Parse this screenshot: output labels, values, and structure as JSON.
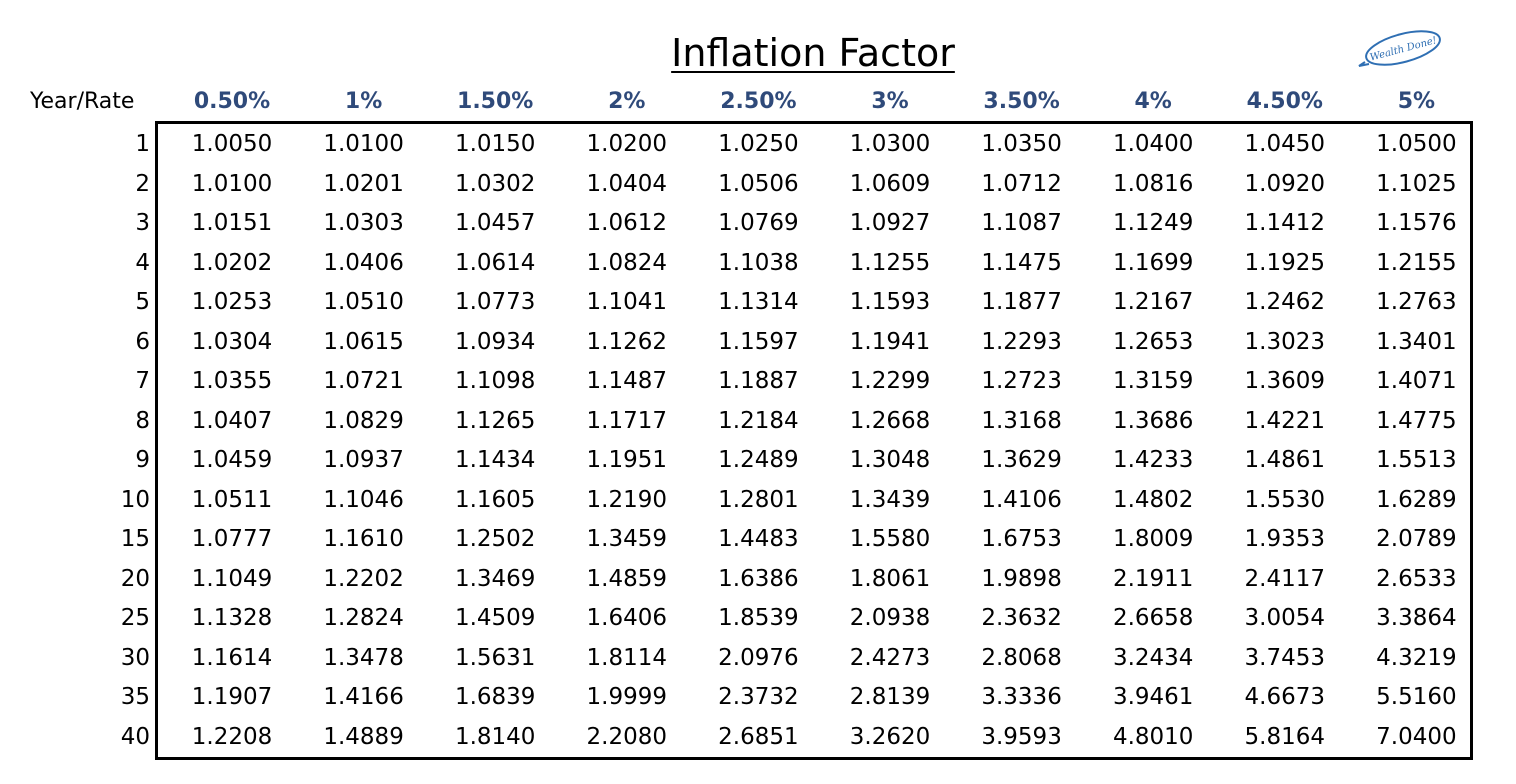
{
  "header": {
    "title": "Inflation Factor",
    "logo": "Wealth Done!"
  },
  "table": {
    "corner": "Year/Rate",
    "columns": [
      "0.50%",
      "1%",
      "1.50%",
      "2%",
      "2.50%",
      "3%",
      "3.50%",
      "4%",
      "4.50%",
      "5%"
    ],
    "rows": [
      {
        "year": "1",
        "values": [
          "1.0050",
          "1.0100",
          "1.0150",
          "1.0200",
          "1.0250",
          "1.0300",
          "1.0350",
          "1.0400",
          "1.0450",
          "1.0500"
        ]
      },
      {
        "year": "2",
        "values": [
          "1.0100",
          "1.0201",
          "1.0302",
          "1.0404",
          "1.0506",
          "1.0609",
          "1.0712",
          "1.0816",
          "1.0920",
          "1.1025"
        ]
      },
      {
        "year": "3",
        "values": [
          "1.0151",
          "1.0303",
          "1.0457",
          "1.0612",
          "1.0769",
          "1.0927",
          "1.1087",
          "1.1249",
          "1.1412",
          "1.1576"
        ]
      },
      {
        "year": "4",
        "values": [
          "1.0202",
          "1.0406",
          "1.0614",
          "1.0824",
          "1.1038",
          "1.1255",
          "1.1475",
          "1.1699",
          "1.1925",
          "1.2155"
        ]
      },
      {
        "year": "5",
        "values": [
          "1.0253",
          "1.0510",
          "1.0773",
          "1.1041",
          "1.1314",
          "1.1593",
          "1.1877",
          "1.2167",
          "1.2462",
          "1.2763"
        ]
      },
      {
        "year": "6",
        "values": [
          "1.0304",
          "1.0615",
          "1.0934",
          "1.1262",
          "1.1597",
          "1.1941",
          "1.2293",
          "1.2653",
          "1.3023",
          "1.3401"
        ]
      },
      {
        "year": "7",
        "values": [
          "1.0355",
          "1.0721",
          "1.1098",
          "1.1487",
          "1.1887",
          "1.2299",
          "1.2723",
          "1.3159",
          "1.3609",
          "1.4071"
        ]
      },
      {
        "year": "8",
        "values": [
          "1.0407",
          "1.0829",
          "1.1265",
          "1.1717",
          "1.2184",
          "1.2668",
          "1.3168",
          "1.3686",
          "1.4221",
          "1.4775"
        ]
      },
      {
        "year": "9",
        "values": [
          "1.0459",
          "1.0937",
          "1.1434",
          "1.1951",
          "1.2489",
          "1.3048",
          "1.3629",
          "1.4233",
          "1.4861",
          "1.5513"
        ]
      },
      {
        "year": "10",
        "values": [
          "1.0511",
          "1.1046",
          "1.1605",
          "1.2190",
          "1.2801",
          "1.3439",
          "1.4106",
          "1.4802",
          "1.5530",
          "1.6289"
        ]
      },
      {
        "year": "15",
        "values": [
          "1.0777",
          "1.1610",
          "1.2502",
          "1.3459",
          "1.4483",
          "1.5580",
          "1.6753",
          "1.8009",
          "1.9353",
          "2.0789"
        ]
      },
      {
        "year": "20",
        "values": [
          "1.1049",
          "1.2202",
          "1.3469",
          "1.4859",
          "1.6386",
          "1.8061",
          "1.9898",
          "2.1911",
          "2.4117",
          "2.6533"
        ]
      },
      {
        "year": "25",
        "values": [
          "1.1328",
          "1.2824",
          "1.4509",
          "1.6406",
          "1.8539",
          "2.0938",
          "2.3632",
          "2.6658",
          "3.0054",
          "3.3864"
        ]
      },
      {
        "year": "30",
        "values": [
          "1.1614",
          "1.3478",
          "1.5631",
          "1.8114",
          "2.0976",
          "2.4273",
          "2.8068",
          "3.2434",
          "3.7453",
          "4.3219"
        ]
      },
      {
        "year": "35",
        "values": [
          "1.1907",
          "1.4166",
          "1.6839",
          "1.9999",
          "2.3732",
          "2.8139",
          "3.3336",
          "3.9461",
          "4.6673",
          "5.5160"
        ]
      },
      {
        "year": "40",
        "values": [
          "1.2208",
          "1.4889",
          "1.8140",
          "2.2080",
          "2.6851",
          "3.2620",
          "3.9593",
          "4.8010",
          "5.8164",
          "7.0400"
        ]
      }
    ]
  }
}
